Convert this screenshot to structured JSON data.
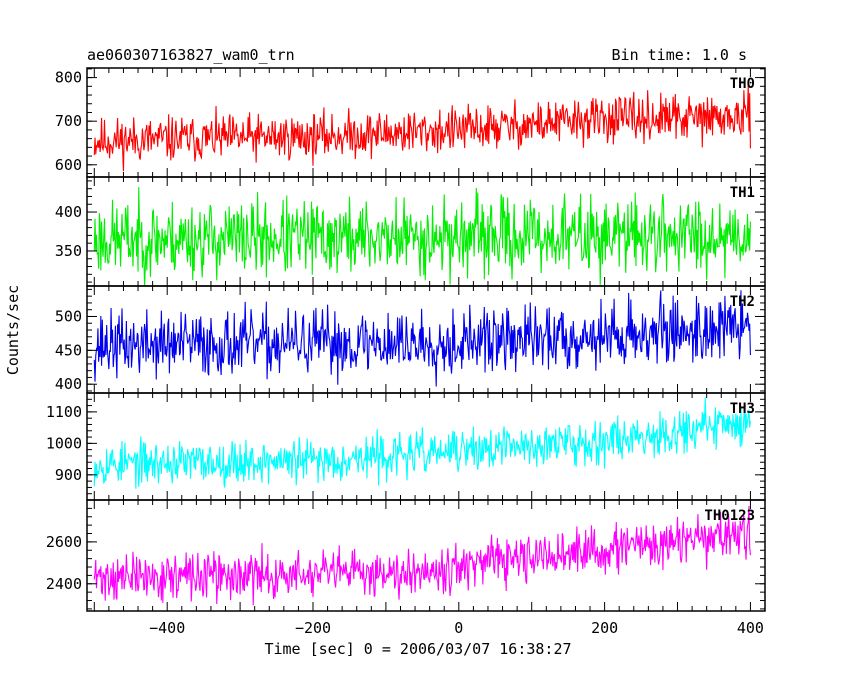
{
  "header": {
    "title": "ae060307163827_wam0_trn",
    "bin_time": "Bin time: 1.0 s"
  },
  "chart_data": {
    "type": "line",
    "title": "ae060307163827_wam0_trn",
    "xlabel": "Time [sec] 0 = 2006/03/07 16:38:27",
    "ylabel": "Counts/sec",
    "xlim": [
      -510,
      420
    ],
    "x_ticks": [
      -400,
      -200,
      0,
      200,
      400
    ],
    "x_tick_labels": [
      "−400",
      "−200",
      "0",
      "200",
      "400"
    ],
    "x_range": [
      -500,
      400
    ],
    "n_points": 901,
    "panels": [
      {
        "name": "TH0",
        "color": "#ff0000",
        "ylim": [
          572,
          822
        ],
        "yticks": [
          600,
          700,
          800
        ],
        "ytick_labels": [
          "600",
          "700",
          "800"
        ],
        "trend": [
          [
            -500,
            655
          ],
          [
            -200,
            665
          ],
          [
            0,
            680
          ],
          [
            200,
            705
          ],
          [
            400,
            708
          ]
        ],
        "noise": 26,
        "seed": 11
      },
      {
        "name": "TH1",
        "color": "#00ee00",
        "ylim": [
          305,
          445
        ],
        "yticks": [
          350,
          400
        ],
        "ytick_labels": [
          "350",
          "400"
        ],
        "trend": [
          [
            -500,
            365
          ],
          [
            0,
            368
          ],
          [
            400,
            372
          ]
        ],
        "noise": 24,
        "seed": 23
      },
      {
        "name": "TH2",
        "color": "#0000ee",
        "ylim": [
          387,
          545
        ],
        "yticks": [
          400,
          450,
          500
        ],
        "ytick_labels": [
          "400",
          "450",
          "500"
        ],
        "trend": [
          [
            -500,
            458
          ],
          [
            0,
            462
          ],
          [
            200,
            472
          ],
          [
            400,
            485
          ]
        ],
        "noise": 24,
        "seed": 37
      },
      {
        "name": "TH3",
        "color": "#00ffff",
        "ylim": [
          820,
          1160
        ],
        "yticks": [
          900,
          1000,
          1100
        ],
        "ytick_labels": [
          "900",
          "1000",
          "1100"
        ],
        "trend": [
          [
            -500,
            935
          ],
          [
            -200,
            945
          ],
          [
            0,
            975
          ],
          [
            200,
            1010
          ],
          [
            400,
            1070
          ]
        ],
        "noise": 34,
        "seed": 53
      },
      {
        "name": "TH0123",
        "color": "#ff00ff",
        "ylim": [
          2270,
          2800
        ],
        "yticks": [
          2400,
          2600
        ],
        "ytick_labels": [
          "2400",
          "2600"
        ],
        "trend": [
          [
            -500,
            2430
          ],
          [
            -200,
            2440
          ],
          [
            0,
            2480
          ],
          [
            200,
            2560
          ],
          [
            400,
            2640
          ]
        ],
        "noise": 55,
        "seed": 71
      }
    ]
  }
}
